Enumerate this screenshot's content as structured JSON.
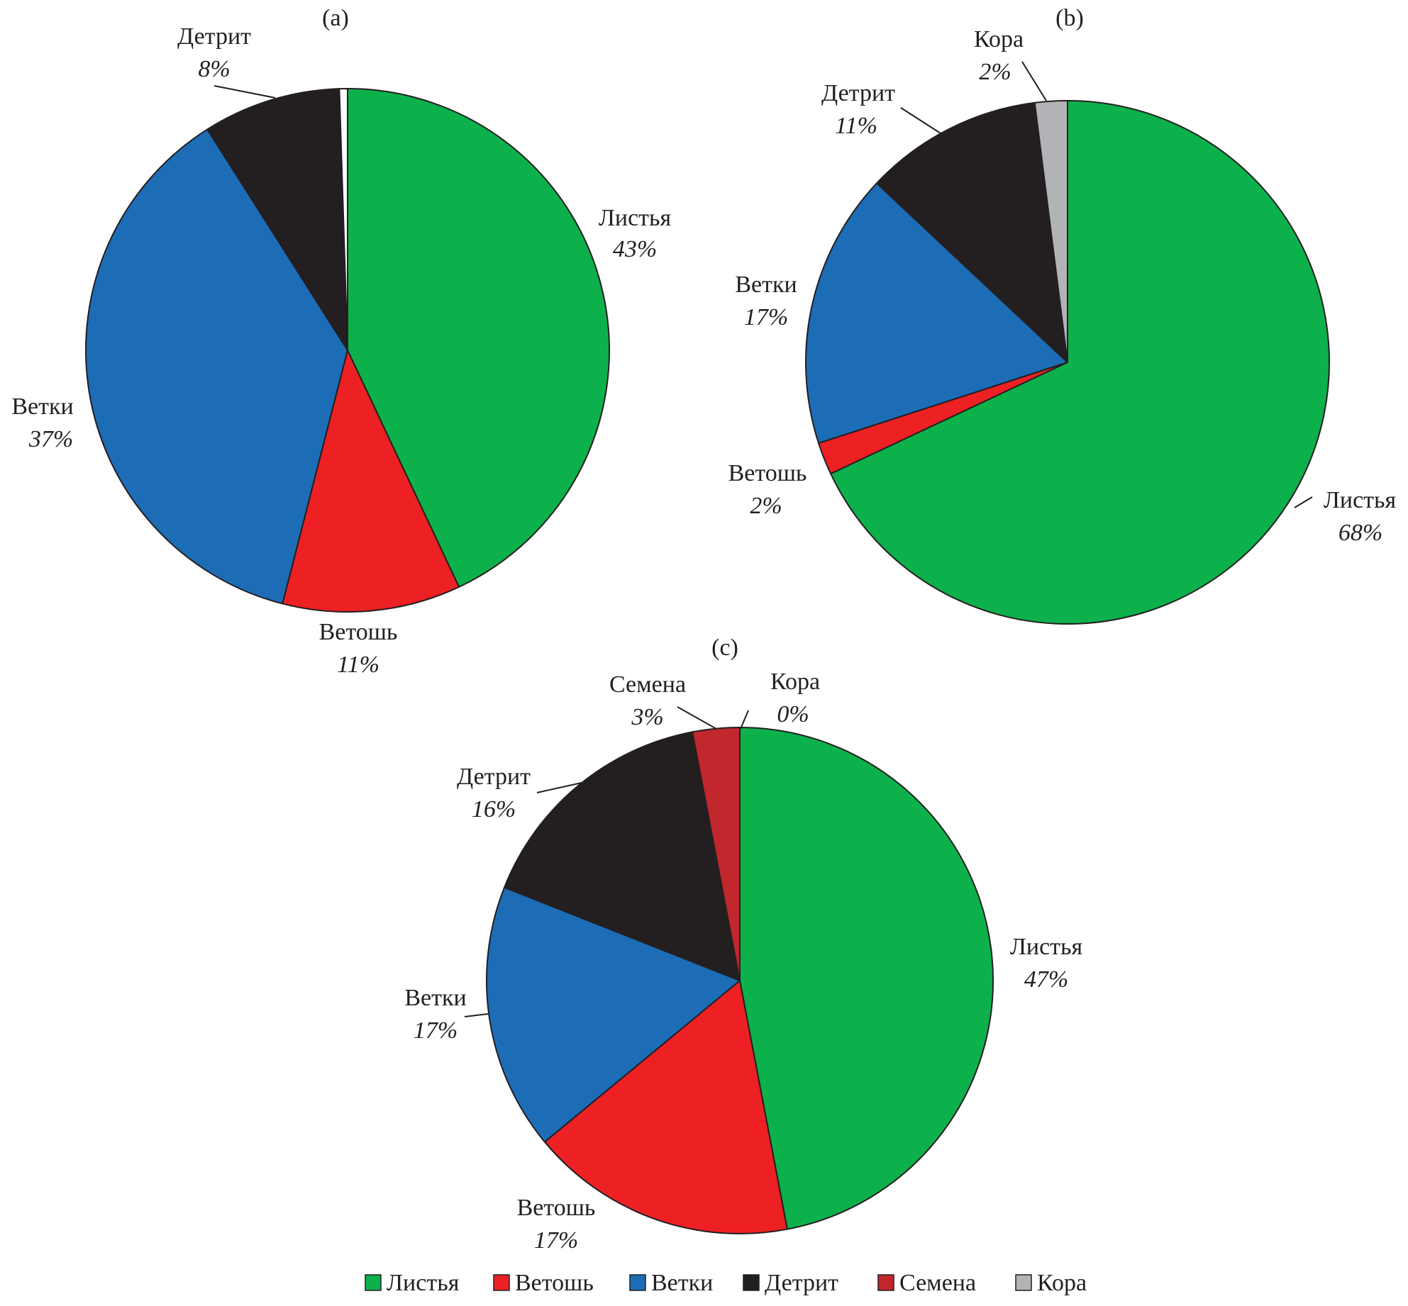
{
  "chart_data": [
    {
      "type": "pie",
      "panel": "(a)",
      "slices": [
        {
          "name": "Листья",
          "value": 43,
          "label": "43%",
          "color": "#0db14b"
        },
        {
          "name": "Ветошь",
          "value": 11,
          "label": "11%",
          "color": "#ed2024"
        },
        {
          "name": "Ветки",
          "value": 37,
          "label": "37%",
          "color": "#1c6db6"
        },
        {
          "name": "Детрит",
          "value": 8,
          "label": "8%",
          "color": "#231f20"
        },
        {
          "name": "Семена",
          "value": 0.5,
          "label": "",
          "color": "#231f20"
        },
        {
          "name": "Кора",
          "value": 0.5,
          "label": "",
          "color": "#ffffff"
        }
      ]
    },
    {
      "type": "pie",
      "panel": "(b)",
      "slices": [
        {
          "name": "Листья",
          "value": 68,
          "label": "68%",
          "color": "#0db14b"
        },
        {
          "name": "Ветошь",
          "value": 2,
          "label": "2%",
          "color": "#ed2024"
        },
        {
          "name": "Ветки",
          "value": 17,
          "label": "17%",
          "color": "#1c6db6"
        },
        {
          "name": "Детрит",
          "value": 11,
          "label": "11%",
          "color": "#231f20"
        },
        {
          "name": "Кора",
          "value": 2,
          "label": "2%",
          "color": "#b1b3b6"
        }
      ]
    },
    {
      "type": "pie",
      "panel": "(c)",
      "slices": [
        {
          "name": "Листья",
          "value": 47,
          "label": "47%",
          "color": "#0db14b"
        },
        {
          "name": "Ветошь",
          "value": 17,
          "label": "17%",
          "color": "#ed2024"
        },
        {
          "name": "Ветки",
          "value": 17,
          "label": "17%",
          "color": "#1c6db6"
        },
        {
          "name": "Детрит",
          "value": 16,
          "label": "16%",
          "color": "#231f20"
        },
        {
          "name": "Семена",
          "value": 3,
          "label": "3%",
          "color": "#c1272d"
        },
        {
          "name": "Кора",
          "value": 0,
          "label": "0%",
          "color": "#b1b3b6"
        }
      ]
    }
  ],
  "legend": [
    {
      "name": "Листья",
      "color": "#0db14b"
    },
    {
      "name": "Ветошь",
      "color": "#ed2024"
    },
    {
      "name": "Ветки",
      "color": "#1c6db6"
    },
    {
      "name": "Детрит",
      "color": "#231f20"
    },
    {
      "name": "Семена",
      "color": "#c1272d"
    },
    {
      "name": "Кора",
      "color": "#b1b3b6"
    }
  ]
}
